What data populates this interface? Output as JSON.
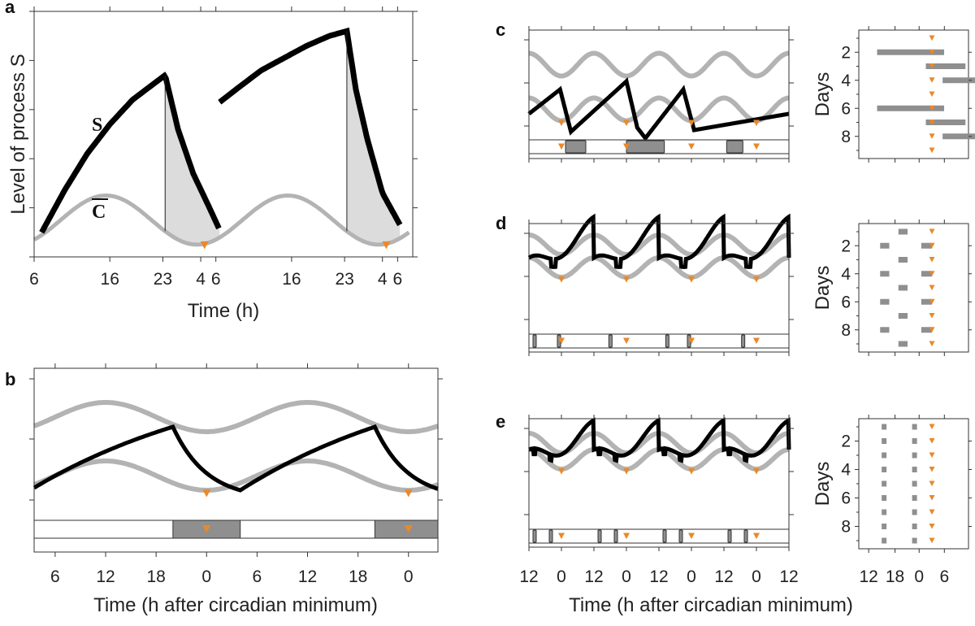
{
  "colors": {
    "S": "#000000",
    "C": "#b3b3b3",
    "marker": "#e8892b",
    "shade": "#dcdcdc",
    "sleep_block": "#8f8f8f",
    "axis": "#333333"
  },
  "chart_data": [
    {
      "panel": "a",
      "type": "line",
      "title": "",
      "xlabel": "Time (h)",
      "ylabel": "Level of process S",
      "x_tick_labels": [
        "6",
        "16",
        "23",
        "4",
        "6",
        "16",
        "23",
        "4",
        "6"
      ],
      "x_ticks_hours": [
        6,
        16,
        23,
        28,
        30,
        40,
        47,
        52,
        54
      ],
      "xlim": [
        6,
        56
      ],
      "ylim": [
        0,
        5
      ],
      "annotations": [
        "S",
        "C̅"
      ],
      "series": [
        {
          "name": "S",
          "x": [
            7,
            10,
            13,
            16,
            19,
            22,
            23.3,
            25,
            27,
            29,
            30.5
          ],
          "y": [
            0.5,
            1.35,
            2.1,
            2.7,
            3.2,
            3.55,
            3.7,
            2.6,
            1.7,
            1.05,
            0.55
          ]
        },
        {
          "name": "S (sleep-deprived)",
          "x": [
            30.5,
            33,
            36,
            39,
            42,
            45,
            47.3,
            48.5,
            50,
            52,
            54.5
          ],
          "y": [
            3.15,
            3.45,
            3.8,
            4.05,
            4.3,
            4.5,
            4.6,
            3.4,
            2.4,
            1.3,
            0.6
          ]
        },
        {
          "name": "C̅ (circadian threshold)",
          "period_h": 24,
          "peak_at_h": 15.5,
          "mean": 0.75,
          "amplitude": 0.5
        },
        {
          "name": "circadian minimum markers",
          "x": [
            28.5,
            52.5
          ]
        }
      ]
    },
    {
      "panel": "b",
      "type": "line",
      "xlabel": "Time (h after circadian minimum)",
      "x_tick_labels": [
        "6",
        "12",
        "18",
        "0",
        "6",
        "12",
        "18",
        "0"
      ],
      "xlim": [
        3.5,
        51.5
      ],
      "series": [
        {
          "name": "upper threshold",
          "period_h": 24,
          "peak_at_h": 12,
          "mean": 0.68,
          "amplitude": 0.12
        },
        {
          "name": "lower threshold",
          "period_h": 24,
          "peak_at_h": 12,
          "mean": 0.2,
          "amplitude": 0.12
        },
        {
          "name": "S",
          "x": [
            3.5,
            20,
            28,
            44,
            51.5
          ],
          "y": [
            0.1,
            0.6,
            0.08,
            0.6,
            0.1
          ]
        },
        {
          "name": "circadian minimum markers",
          "x": [
            24,
            48
          ]
        },
        {
          "name": "sleep episodes",
          "intervals": [
            [
              20,
              28
            ],
            [
              44,
              51.5
            ]
          ]
        }
      ]
    },
    {
      "panel": "c",
      "type": "line",
      "xlabel": "Time (h after circadian minimum)",
      "x_tick_labels": [
        "12",
        "0",
        "12",
        "0",
        "12",
        "0",
        "12",
        "0",
        "12"
      ],
      "xlim": [
        -12,
        84
      ],
      "series": [
        {
          "name": "S",
          "x": [
            -12,
            -0.5,
            3.5,
            24,
            28,
            31,
            45,
            49,
            84
          ],
          "y": [
            0.42,
            0.72,
            0.2,
            0.82,
            0.25,
            0.12,
            0.72,
            0.22,
            0.42
          ]
        },
        {
          "name": "sleep episodes",
          "intervals": [
            [
              1.5,
              9
            ],
            [
              24,
              38
            ],
            [
              61,
              67
            ]
          ]
        },
        {
          "name": "circadian minimum markers",
          "x": [
            0,
            24,
            48,
            72
          ]
        }
      ],
      "raster": {
        "ylabel": "Days",
        "y_tick_labels": [
          "2",
          "4",
          "6",
          "8"
        ],
        "x_tick_labels": [],
        "rows": [
          {
            "day": 1,
            "sleep": []
          },
          {
            "day": 2,
            "sleep": [
              [
                -18,
                4
              ]
            ]
          },
          {
            "day": 3,
            "sleep": [
              [
                -2,
                11
              ]
            ]
          },
          {
            "day": 4,
            "sleep": [
              [
                3.5,
                14.5
              ]
            ]
          },
          {
            "day": 5,
            "sleep": []
          },
          {
            "day": 6,
            "sleep": [
              [
                -18,
                4
              ]
            ]
          },
          {
            "day": 7,
            "sleep": [
              [
                -2,
                11
              ]
            ]
          },
          {
            "day": 8,
            "sleep": [
              [
                3.5,
                14.5
              ]
            ]
          },
          {
            "day": 9,
            "sleep": []
          }
        ]
      }
    },
    {
      "panel": "d",
      "type": "line",
      "xlabel": "Time (h after circadian minimum)",
      "x_tick_labels": [
        "12",
        "0",
        "12",
        "0",
        "12",
        "0",
        "12",
        "0",
        "12"
      ],
      "xlim": [
        -12,
        84
      ],
      "series": [
        {
          "name": "sleep episodes",
          "intervals": [
            [
              -10.5,
              -9.5
            ],
            [
              -1.5,
              -0.5
            ],
            [
              17.5,
              18.5
            ],
            [
              38.5,
              39.5
            ],
            [
              46.5,
              47.5
            ],
            [
              66.5,
              67.5
            ]
          ]
        },
        {
          "name": "circadian minimum markers",
          "x": [
            0,
            24,
            48,
            72
          ]
        }
      ],
      "raster": {
        "ylabel": "Days",
        "y_tick_labels": [
          "2",
          "4",
          "6",
          "8"
        ],
        "rows": [
          {
            "day": 1,
            "sleep": [
              [
                -11,
                -8
              ]
            ]
          },
          {
            "day": 2,
            "sleep": [
              [
                -17,
                -14
              ],
              [
                -3.5,
                0
              ]
            ]
          },
          {
            "day": 3,
            "sleep": [
              [
                -11,
                -8
              ]
            ]
          },
          {
            "day": 4,
            "sleep": [
              [
                -17,
                -14
              ],
              [
                -3.5,
                0
              ]
            ]
          },
          {
            "day": 5,
            "sleep": [
              [
                -11,
                -8
              ]
            ]
          },
          {
            "day": 6,
            "sleep": [
              [
                -17,
                -14
              ],
              [
                -3.5,
                0
              ]
            ]
          },
          {
            "day": 7,
            "sleep": [
              [
                -11,
                -8
              ]
            ]
          },
          {
            "day": 8,
            "sleep": [
              [
                -17,
                -14
              ],
              [
                -3.5,
                0
              ]
            ]
          },
          {
            "day": 9,
            "sleep": [
              [
                -11,
                -8
              ]
            ]
          }
        ]
      }
    },
    {
      "panel": "e",
      "type": "line",
      "xlabel": "Time (h after circadian minimum)",
      "x_tick_labels": [
        "12",
        "0",
        "12",
        "0",
        "12",
        "0",
        "12",
        "0",
        "12"
      ],
      "xlim": [
        -12,
        84
      ],
      "series": [
        {
          "name": "sleep episodes",
          "intervals": [
            [
              -10.5,
              -10
            ],
            [
              -4.5,
              -4
            ],
            [
              13.5,
              14
            ],
            [
              19.5,
              20
            ],
            [
              37.5,
              38
            ],
            [
              43.5,
              44
            ],
            [
              61.5,
              62
            ],
            [
              67.5,
              68
            ]
          ]
        },
        {
          "name": "circadian minimum markers",
          "x": [
            0,
            24,
            48,
            72
          ]
        }
      ],
      "raster": {
        "ylabel": "Days",
        "y_tick_labels": [
          "2",
          "4",
          "6",
          "8"
        ],
        "x_tick_labels": [
          "12",
          "18",
          "0",
          "6"
        ],
        "rows_count": 9,
        "sleep_each_day": [
          [
            -16.5,
            -15.5
          ],
          [
            -6.5,
            -5.5
          ]
        ]
      }
    }
  ]
}
